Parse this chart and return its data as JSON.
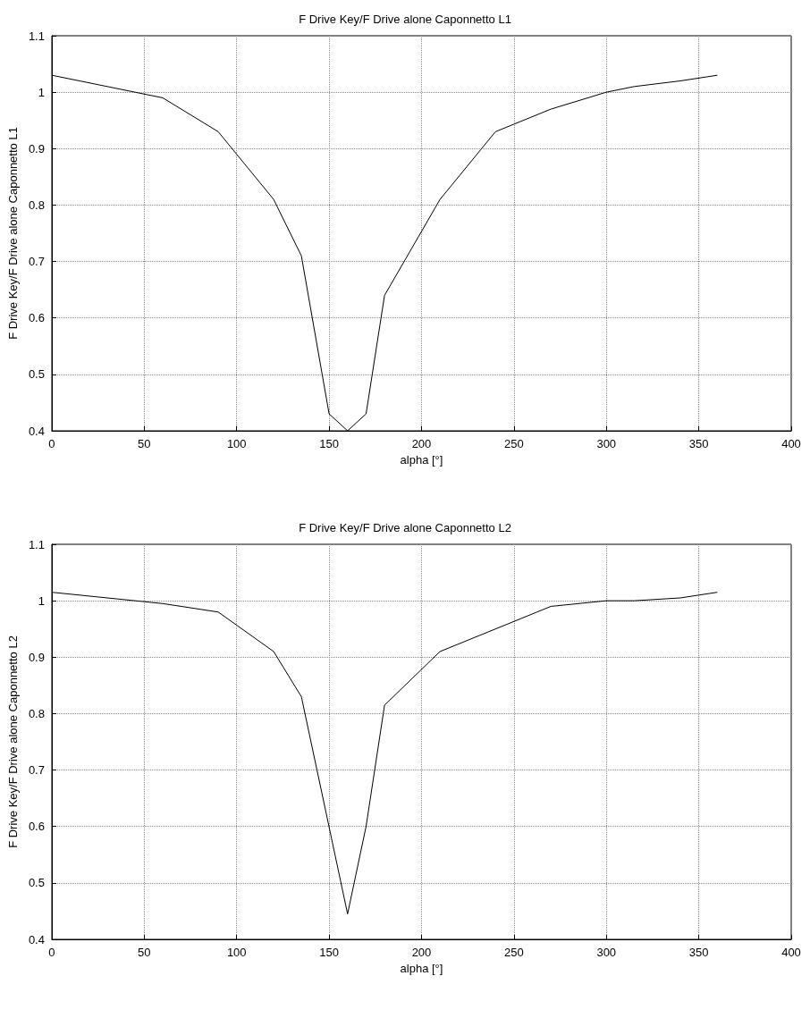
{
  "chart_data": [
    {
      "type": "line",
      "title": "F Drive Key/F Drive alone Caponnetto L1",
      "xlabel": "alpha [°]",
      "ylabel": "F Drive Key/F Drive alone Caponnetto L1",
      "x": [
        0,
        60,
        90,
        120,
        135,
        150,
        160,
        170,
        180,
        210,
        240,
        270,
        300,
        315,
        340,
        360
      ],
      "series": [
        {
          "color": "#000000",
          "values": [
            1.03,
            0.99,
            0.93,
            0.81,
            0.71,
            0.43,
            0.4,
            0.43,
            0.64,
            0.81,
            0.93,
            0.97,
            1.0,
            1.01,
            1.02,
            1.03
          ]
        }
      ],
      "xlim": [
        0,
        400
      ],
      "xticks": [
        0,
        50,
        100,
        150,
        200,
        250,
        300,
        350,
        400
      ],
      "ylim": [
        0.4,
        1.1
      ],
      "yticks": [
        0.4,
        0.5,
        0.6,
        0.7,
        0.8,
        0.9,
        1,
        1.1
      ],
      "grid": true,
      "marker": "none",
      "line_style": "solid"
    },
    {
      "type": "line",
      "title": "F Drive Key/F Drive alone Caponnetto L2",
      "xlabel": "alpha [°]",
      "ylabel": "F Drive Key/F Drive alone Caponnetto L2",
      "x": [
        0,
        60,
        90,
        120,
        135,
        160,
        170,
        180,
        210,
        270,
        300,
        315,
        340,
        360
      ],
      "series": [
        {
          "color": "#000000",
          "values": [
            1.015,
            0.995,
            0.98,
            0.91,
            0.83,
            0.445,
            0.6,
            0.815,
            0.91,
            0.99,
            1.0,
            1.0,
            1.005,
            1.015
          ]
        }
      ],
      "xlim": [
        0,
        400
      ],
      "xticks": [
        0,
        50,
        100,
        150,
        200,
        250,
        300,
        350,
        400
      ],
      "ylim": [
        0.4,
        1.1
      ],
      "yticks": [
        0.4,
        0.5,
        0.6,
        0.7,
        0.8,
        0.9,
        1,
        1.1
      ],
      "grid": true,
      "marker": "none",
      "line_style": "solid"
    }
  ]
}
